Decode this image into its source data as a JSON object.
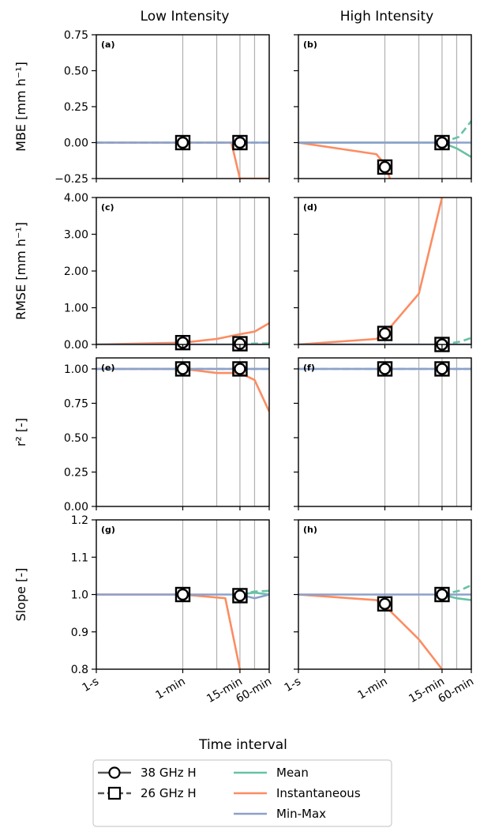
{
  "figure": {
    "column_titles": [
      "Low Intensity",
      "High Intensity"
    ],
    "xlabel": "Time interval",
    "x_tick_labels": [
      "1-s",
      "1-min",
      "15-min",
      "60-min"
    ],
    "x_tick_seconds": [
      1,
      60,
      900,
      3600
    ],
    "x_grid_seconds": [
      60,
      300,
      900,
      1800,
      3600
    ],
    "x_scale": "log",
    "xlim_seconds": [
      1,
      3600
    ],
    "grid": "vertical",
    "colors": {
      "mean": "#66c2a5",
      "instantaneous": "#fc8d62",
      "minmax": "#8da0cb",
      "marker": "#000000",
      "sensor": "#555555"
    }
  },
  "legend": {
    "placement": "bottom-center",
    "entries": [
      {
        "label": "38 GHz H",
        "kind": "sensor",
        "marker": "circle"
      },
      {
        "label": "26 GHz H",
        "kind": "sensor",
        "marker": "square"
      },
      {
        "label": "Mean",
        "kind": "line",
        "color": "#66c2a5"
      },
      {
        "label": "Instantaneous",
        "kind": "line",
        "color": "#fc8d62"
      },
      {
        "label": "Min-Max",
        "kind": "line",
        "color": "#8da0cb"
      }
    ]
  },
  "chart_data": [
    {
      "id": "a",
      "panel_label": "(a)",
      "metric": "MBE",
      "column": "Low Intensity",
      "type": "line",
      "ylabel": "MBE [mm h⁻¹]",
      "ylim": [
        -0.25,
        0.75
      ],
      "yticks": [
        -0.25,
        0.0,
        0.25,
        0.5,
        0.75
      ],
      "ytick_labels": [
        "−0.25",
        "0.00",
        "0.25",
        "0.50",
        "0.75"
      ],
      "series": [
        {
          "name": "Instantaneous",
          "style": "solid",
          "points": [
            [
              1,
              0.0
            ],
            [
              60,
              0.0
            ],
            [
              600,
              0.0
            ],
            [
              900,
              -0.25
            ],
            [
              3600,
              -0.25
            ]
          ]
        },
        {
          "name": "Min-Max",
          "style": "solid",
          "points": [
            [
              1,
              0.0
            ],
            [
              3600,
              0.0
            ]
          ]
        },
        {
          "name": "Mean",
          "style": "dashed",
          "points": [
            [
              1,
              0.0
            ],
            [
              3600,
              0.0
            ]
          ]
        }
      ],
      "markers": [
        {
          "sensor": "38 GHz H",
          "x": 60,
          "y": 0.0
        },
        {
          "sensor": "26 GHz H",
          "x": 900,
          "y": 0.0
        }
      ]
    },
    {
      "id": "b",
      "panel_label": "(b)",
      "metric": "MBE",
      "column": "High Intensity",
      "type": "line",
      "ylim": [
        -0.25,
        0.75
      ],
      "yticks": [
        -0.25,
        0.0,
        0.25,
        0.5,
        0.75
      ],
      "series": [
        {
          "name": "Instantaneous",
          "style": "solid",
          "points": [
            [
              1,
              0.0
            ],
            [
              40,
              -0.08
            ],
            [
              60,
              -0.15
            ],
            [
              80,
              -0.27
            ]
          ]
        },
        {
          "name": "Min-Max",
          "style": "solid",
          "points": [
            [
              1,
              0.0
            ],
            [
              3600,
              0.0
            ]
          ]
        },
        {
          "name": "Mean",
          "style": "solid",
          "points": [
            [
              1,
              0.0
            ],
            [
              900,
              0.0
            ],
            [
              1800,
              -0.04
            ],
            [
              3600,
              -0.1
            ]
          ]
        },
        {
          "name": "Mean",
          "style": "dashed",
          "points": [
            [
              900,
              0.0
            ],
            [
              2000,
              0.04
            ],
            [
              3600,
              0.15
            ]
          ]
        }
      ],
      "markers": [
        {
          "sensor": "38 GHz H",
          "x": 60,
          "y": -0.17
        },
        {
          "sensor": "26 GHz H",
          "x": 900,
          "y": 0.0
        }
      ]
    },
    {
      "id": "c",
      "panel_label": "(c)",
      "metric": "RMSE",
      "column": "Low Intensity",
      "type": "line",
      "ylabel": "RMSE [mm h⁻¹]",
      "ylim": [
        0,
        4
      ],
      "yticks": [
        0,
        1,
        2,
        3,
        4
      ],
      "ytick_labels": [
        "0.00",
        "1.00",
        "2.00",
        "3.00",
        "4.00"
      ],
      "series": [
        {
          "name": "Instantaneous",
          "style": "solid",
          "points": [
            [
              1,
              0.0
            ],
            [
              60,
              0.05
            ],
            [
              300,
              0.15
            ],
            [
              900,
              0.28
            ],
            [
              1800,
              0.35
            ],
            [
              3600,
              0.58
            ]
          ]
        },
        {
          "name": "Min-Max",
          "style": "solid",
          "points": [
            [
              1,
              0.0
            ],
            [
              3600,
              0.0
            ]
          ]
        },
        {
          "name": "Mean",
          "style": "dashed",
          "points": [
            [
              900,
              0.02
            ],
            [
              3600,
              0.03
            ]
          ]
        }
      ],
      "markers": [
        {
          "sensor": "38 GHz H",
          "x": 60,
          "y": 0.05
        },
        {
          "sensor": "26 GHz H",
          "x": 900,
          "y": 0.02
        }
      ]
    },
    {
      "id": "d",
      "panel_label": "(d)",
      "metric": "RMSE",
      "column": "High Intensity",
      "type": "line",
      "ylim": [
        0,
        4
      ],
      "yticks": [
        0,
        1,
        2,
        3,
        4
      ],
      "series": [
        {
          "name": "Instantaneous",
          "style": "solid",
          "points": [
            [
              1,
              0.0
            ],
            [
              40,
              0.15
            ],
            [
              60,
              0.3
            ],
            [
              300,
              1.38
            ],
            [
              900,
              4.0
            ]
          ]
        },
        {
          "name": "Min-Max",
          "style": "solid",
          "points": [
            [
              1,
              0.0
            ],
            [
              3600,
              0.0
            ]
          ]
        },
        {
          "name": "Mean",
          "style": "dashed",
          "points": [
            [
              900,
              0.0
            ],
            [
              2200,
              0.08
            ],
            [
              3600,
              0.18
            ]
          ]
        }
      ],
      "markers": [
        {
          "sensor": "38 GHz H",
          "x": 60,
          "y": 0.3
        },
        {
          "sensor": "26 GHz H",
          "x": 900,
          "y": 0.0
        }
      ]
    },
    {
      "id": "e",
      "panel_label": "(e)",
      "metric": "r²",
      "column": "Low Intensity",
      "type": "line",
      "ylabel": "r² [-]",
      "ylim": [
        0,
        1.08
      ],
      "yticks": [
        0,
        0.25,
        0.5,
        0.75,
        1.0
      ],
      "ytick_labels": [
        "0.00",
        "0.25",
        "0.50",
        "0.75",
        "1.00"
      ],
      "series": [
        {
          "name": "Instantaneous",
          "style": "solid",
          "points": [
            [
              1,
              1.0
            ],
            [
              60,
              1.0
            ],
            [
              300,
              0.97
            ],
            [
              900,
              0.97
            ],
            [
              1800,
              0.92
            ],
            [
              3600,
              0.69
            ]
          ]
        },
        {
          "name": "Min-Max",
          "style": "solid",
          "points": [
            [
              1,
              1.0
            ],
            [
              3600,
              1.0
            ]
          ]
        },
        {
          "name": "Mean",
          "style": "dashed",
          "points": [
            [
              1,
              1.0
            ],
            [
              3600,
              1.0
            ]
          ]
        }
      ],
      "markers": [
        {
          "sensor": "38 GHz H",
          "x": 60,
          "y": 1.0
        },
        {
          "sensor": "26 GHz H",
          "x": 900,
          "y": 1.0
        }
      ]
    },
    {
      "id": "f",
      "panel_label": "(f)",
      "metric": "r²",
      "column": "High Intensity",
      "type": "line",
      "ylim": [
        0,
        1.08
      ],
      "yticks": [
        0,
        0.25,
        0.5,
        0.75,
        1.0
      ],
      "series": [
        {
          "name": "Min-Max",
          "style": "solid",
          "points": [
            [
              1,
              1.0
            ],
            [
              3600,
              1.0
            ]
          ]
        },
        {
          "name": "Mean",
          "style": "dashed",
          "points": [
            [
              1,
              1.0
            ],
            [
              3600,
              1.0
            ]
          ]
        }
      ],
      "markers": [
        {
          "sensor": "38 GHz H",
          "x": 60,
          "y": 1.0
        },
        {
          "sensor": "26 GHz H",
          "x": 900,
          "y": 1.0
        }
      ]
    },
    {
      "id": "g",
      "panel_label": "(g)",
      "metric": "Slope",
      "column": "Low Intensity",
      "type": "line",
      "ylabel": "Slope [-]",
      "ylim": [
        0.8,
        1.2
      ],
      "yticks": [
        0.8,
        0.9,
        1.0,
        1.1,
        1.2
      ],
      "ytick_labels": [
        "0.8",
        "0.9",
        "1.0",
        "1.1",
        "1.2"
      ],
      "series": [
        {
          "name": "Instantaneous",
          "style": "solid",
          "points": [
            [
              1,
              1.0
            ],
            [
              60,
              1.0
            ],
            [
              450,
              0.99
            ],
            [
              900,
              0.8
            ]
          ]
        },
        {
          "name": "Min-Max",
          "style": "solid",
          "points": [
            [
              1,
              1.0
            ],
            [
              900,
              1.0
            ],
            [
              1800,
              0.99
            ],
            [
              3600,
              1.0
            ]
          ]
        },
        {
          "name": "Mean",
          "style": "solid",
          "points": [
            [
              900,
              1.0
            ],
            [
              1800,
              1.005
            ],
            [
              3600,
              1.0
            ]
          ]
        },
        {
          "name": "Mean",
          "style": "dashed",
          "points": [
            [
              900,
              1.0
            ],
            [
              1800,
              1.008
            ],
            [
              3600,
              1.01
            ]
          ]
        }
      ],
      "markers": [
        {
          "sensor": "38 GHz H",
          "x": 60,
          "y": 1.0
        },
        {
          "sensor": "26 GHz H",
          "x": 900,
          "y": 0.997
        }
      ]
    },
    {
      "id": "h",
      "panel_label": "(h)",
      "metric": "Slope",
      "column": "High Intensity",
      "type": "line",
      "ylim": [
        0.8,
        1.2
      ],
      "yticks": [
        0.8,
        0.9,
        1.0,
        1.1,
        1.2
      ],
      "series": [
        {
          "name": "Instantaneous",
          "style": "solid",
          "points": [
            [
              1,
              1.0
            ],
            [
              40,
              0.985
            ],
            [
              60,
              0.97
            ],
            [
              300,
              0.88
            ],
            [
              900,
              0.8
            ]
          ]
        },
        {
          "name": "Min-Max",
          "style": "solid",
          "points": [
            [
              1,
              1.0
            ],
            [
              3600,
              1.0
            ]
          ]
        },
        {
          "name": "Mean",
          "style": "solid",
          "points": [
            [
              900,
              1.0
            ],
            [
              1800,
              0.99
            ],
            [
              3600,
              0.985
            ]
          ]
        },
        {
          "name": "Mean",
          "style": "dashed",
          "points": [
            [
              900,
              1.0
            ],
            [
              2000,
              1.01
            ],
            [
              3600,
              1.025
            ]
          ]
        }
      ],
      "markers": [
        {
          "sensor": "38 GHz H",
          "x": 60,
          "y": 0.975
        },
        {
          "sensor": "26 GHz H",
          "x": 900,
          "y": 1.0
        }
      ]
    }
  ]
}
